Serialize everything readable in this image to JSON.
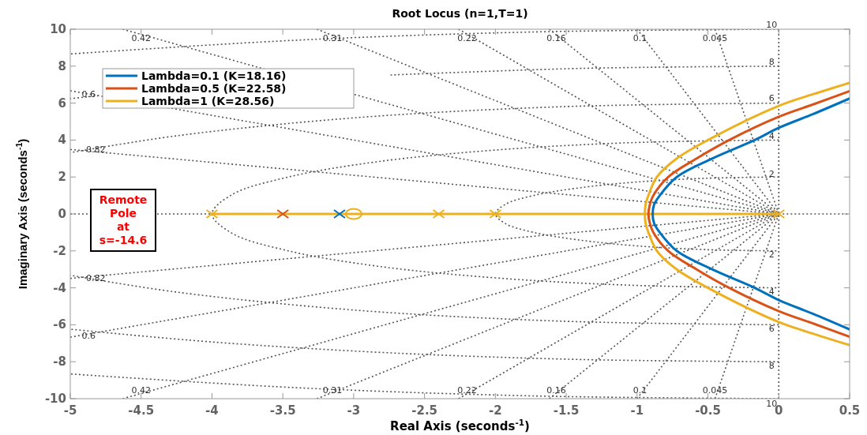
{
  "chart_data": {
    "type": "line",
    "title": "Root Locus (n=1,T=1)",
    "xlabel": "Real Axis (seconds$^{-1}$)",
    "ylabel": "Imaginary Axis (seconds$^{-1}$)",
    "xlim": [
      -5,
      0.5
    ],
    "ylim": [
      -10,
      10
    ],
    "xticks": [
      -5,
      -4.5,
      -4,
      -3.5,
      -3,
      -2.5,
      -2,
      -1.5,
      -1,
      -0.5,
      0,
      0.5
    ],
    "yticks": [
      -10,
      -8,
      -6,
      -4,
      -2,
      0,
      2,
      4,
      6,
      8,
      10
    ],
    "legend": "top left",
    "series": [
      {
        "color": "#555555",
        "line_style": "dotted",
        "x": [
          -5,
          -4
        ],
        "values": [
          0,
          0
        ]
      },
      {
        "color": "#555555",
        "line_style": "dotted",
        "x": [
          0,
          0.5
        ],
        "values": [
          0,
          0
        ]
      },
      {
        "color": "#555555",
        "line_style": "dotted",
        "x": [
          0,
          0
        ],
        "values": [
          -10,
          10
        ]
      },
      {
        "color": "#555555",
        "line_style": "dotted",
        "x": [
          -0.45,
          0
        ],
        "values": [
          10,
          0
        ]
      },
      {
        "color": "#555555",
        "line_style": "dotted",
        "x": [
          -0.45,
          0
        ],
        "values": [
          -10,
          0
        ]
      },
      {
        "color": "#555555",
        "line_style": "dotted",
        "x": [
          -1.0,
          0
        ],
        "values": [
          10,
          0
        ]
      },
      {
        "color": "#555555",
        "line_style": "dotted",
        "x": [
          -1.0,
          0
        ],
        "values": [
          -10,
          0
        ]
      },
      {
        "color": "#555555",
        "line_style": "dotted",
        "x": [
          -1.62,
          0
        ],
        "values": [
          10,
          0
        ]
      },
      {
        "color": "#555555",
        "line_style": "dotted",
        "x": [
          -1.62,
          0
        ],
        "values": [
          -10,
          0
        ]
      },
      {
        "color": "#555555",
        "line_style": "dotted",
        "x": [
          -2.26,
          0
        ],
        "values": [
          10,
          0
        ]
      },
      {
        "color": "#555555",
        "line_style": "dotted",
        "x": [
          -2.26,
          0
        ],
        "values": [
          -10,
          0
        ]
      },
      {
        "color": "#555555",
        "line_style": "dotted",
        "x": [
          -3.26,
          0
        ],
        "values": [
          10,
          0
        ]
      },
      {
        "color": "#555555",
        "line_style": "dotted",
        "x": [
          -3.26,
          0
        ],
        "values": [
          -10,
          0
        ]
      },
      {
        "color": "#555555",
        "line_style": "dotted",
        "x": [
          -4.63,
          0
        ],
        "values": [
          10,
          0
        ]
      },
      {
        "color": "#555555",
        "line_style": "dotted",
        "x": [
          -4.63,
          0
        ],
        "values": [
          -10,
          0
        ]
      },
      {
        "color": "#555555",
        "line_style": "dotted",
        "x": [
          -5,
          0
        ],
        "values": [
          6.67,
          0
        ]
      },
      {
        "color": "#555555",
        "line_style": "dotted",
        "x": [
          -5,
          0
        ],
        "values": [
          -6.67,
          0
        ]
      },
      {
        "color": "#555555",
        "line_style": "dotted",
        "x": [
          -5,
          0
        ],
        "values": [
          3.49,
          0
        ]
      },
      {
        "color": "#555555",
        "line_style": "dotted",
        "x": [
          -5,
          0
        ],
        "values": [
          -3.49,
          0
        ]
      },
      {
        "color": "#555555",
        "line_style": "dotted",
        "x": [
          0,
          -0.52,
          -1,
          -1.41,
          -1.73,
          -1.93,
          -2,
          -1.93,
          -1.73,
          -1.41,
          -1,
          -0.52,
          0
        ],
        "values": [
          2,
          1.93,
          1.73,
          1.41,
          1,
          0.52,
          0,
          -0.52,
          -1,
          -1.41,
          -1.73,
          -1.93,
          -2
        ]
      },
      {
        "color": "#555555",
        "line_style": "dotted",
        "x": [
          0,
          -1.04,
          -2,
          -2.83,
          -3.46,
          -3.86,
          -4,
          -3.86,
          -3.46,
          -2.83,
          -2,
          -1.04,
          0
        ],
        "values": [
          4,
          3.86,
          3.46,
          2.83,
          2,
          1.04,
          0,
          -1.04,
          -2,
          -2.83,
          -3.46,
          -3.86,
          -4
        ]
      },
      {
        "color": "#555555",
        "line_style": "dotted",
        "x": [
          0,
          -1.55,
          -3,
          -4.24,
          -5
        ],
        "values": [
          6,
          5.8,
          5.2,
          4.24,
          3.32
        ]
      },
      {
        "color": "#555555",
        "line_style": "dotted",
        "x": [
          0,
          -1.55,
          -3,
          -4.24,
          -5
        ],
        "values": [
          -6,
          -5.8,
          -5.2,
          -4.24,
          -3.32
        ]
      },
      {
        "color": "#555555",
        "line_style": "dotted",
        "x": [
          0,
          -1.39,
          -2.74,
          -4,
          -4.8,
          -5
        ],
        "values": [
          8,
          7.88,
          7.52,
          null,
          6.4,
          6.24
        ]
      },
      {
        "color": "#555555",
        "line_style": "dotted",
        "x": [
          0,
          -1.39,
          -2.74,
          -4,
          -5
        ],
        "values": [
          -8,
          -7.88,
          -7.52,
          -6.93,
          -6.24
        ]
      },
      {
        "color": "#555555",
        "line_style": "dotted",
        "x": [
          0,
          -1.74,
          -3.42,
          -5
        ],
        "values": [
          10,
          9.85,
          9.4,
          8.66
        ]
      },
      {
        "color": "#555555",
        "line_style": "dotted",
        "x": [
          0,
          -1.74,
          -3.42,
          -5
        ],
        "values": [
          -10,
          -9.85,
          -9.4,
          -8.66
        ]
      },
      {
        "color": "#edb120",
        "line_style": "solid",
        "x": [
          -4,
          0
        ],
        "values": [
          0,
          0
        ]
      },
      {
        "name": "Lambda=0.1 (K=18.16)",
        "color": "#0072bd",
        "line_style": "solid",
        "x": [
          0.5,
          0.24,
          0,
          -0.17,
          -0.47,
          -0.72,
          -0.84,
          -0.88,
          -0.89,
          -0.88,
          -0.84,
          -0.72,
          -0.47,
          -0.17,
          0,
          0.24,
          0.5
        ],
        "values": [
          -6.25,
          -5.4,
          -4.66,
          -4,
          -3,
          -2,
          -1,
          -0.5,
          0,
          0.5,
          1,
          2,
          3,
          4,
          4.66,
          5.4,
          6.25
        ]
      },
      {
        "name": "Lambda=0.5 (K=22.58)",
        "color": "#d95319",
        "line_style": "solid",
        "x": [
          0.5,
          0.25,
          0,
          -0.35,
          -0.58,
          -0.78,
          -0.885,
          -0.91,
          -0.92,
          -0.91,
          -0.885,
          -0.78,
          -0.58,
          -0.35,
          0,
          0.25,
          0.5
        ],
        "values": [
          -6.65,
          -5.95,
          -5.26,
          -4,
          -3,
          -2,
          -1,
          -0.5,
          0,
          0.5,
          1,
          2,
          3,
          4,
          5.26,
          5.95,
          6.65
        ]
      },
      {
        "name": "Lambda=1 (K=28.56)",
        "color": "#edb120",
        "line_style": "solid",
        "x": [
          0.5,
          0.25,
          0,
          -0.5,
          -0.72,
          -0.86,
          -0.92,
          -0.94,
          -0.945,
          -0.94,
          -0.92,
          -0.86,
          -0.72,
          -0.5,
          0,
          0.25,
          0.5
        ],
        "values": [
          -7.1,
          -6.5,
          -5.85,
          -4,
          -3,
          -2,
          -1,
          -0.5,
          0,
          0.5,
          1,
          2,
          3,
          4,
          5.85,
          6.5,
          7.1
        ]
      },
      {
        "type": "scatter",
        "color": "#0072bd",
        "marker": "cross",
        "x": [
          -3.1
        ],
        "values": [
          0
        ]
      },
      {
        "type": "scatter",
        "color": "#d95319",
        "marker": "cross",
        "x": [
          -3.5
        ],
        "values": [
          0
        ]
      },
      {
        "type": "scatter",
        "color": "#edb120",
        "marker": "cross",
        "x": [
          -4,
          -2.4,
          -2,
          0
        ],
        "values": [
          0,
          0,
          0,
          0
        ]
      },
      {
        "type": "scatter",
        "color": "#edb120",
        "marker": "circle",
        "x": [
          -3
        ],
        "values": [
          0
        ]
      }
    ],
    "annotations": [
      "Remote Pole at s=-14.6",
      "0.42",
      "0.31",
      "0.22",
      "0.16",
      "0.1",
      "0.045",
      "0.6",
      "0.82",
      "0.82",
      "0.6",
      "0.42",
      "0.31",
      "0.22",
      "0.16",
      "0.1",
      "0.045",
      "10",
      "8",
      "6",
      "4",
      "2",
      "2",
      "4",
      "6",
      "8",
      "10"
    ]
  }
}
